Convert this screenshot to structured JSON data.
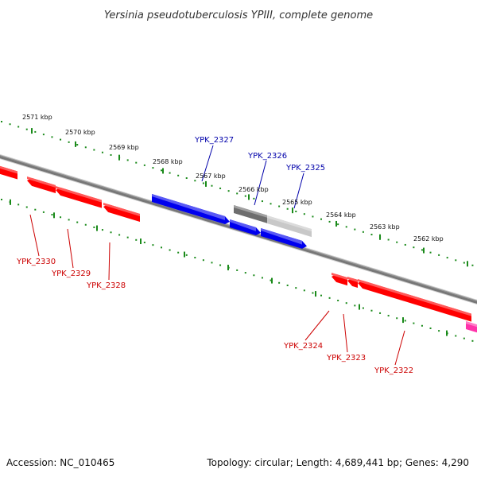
{
  "title": "Yersinia pseudotuberculosis YPIII, complete genome",
  "footer": {
    "accession": "Accession: NC_010465",
    "summary": "Topology: circular; Length: 4,689,441 bp; Genes: 4,290"
  },
  "colors": {
    "forward_gene": "#ff0000",
    "reverse_gene": "#0000ee",
    "pseudo_gene_dark": "#6e6e6e",
    "pseudo_gene_light": "#c8c8c8",
    "other_feature": "#ff33aa",
    "backbone": "#777777",
    "ticks": "#1a8a1a",
    "label_blue": "#0000aa",
    "label_red": "#cc0000"
  },
  "ticks": [
    {
      "label": "2571 kbp"
    },
    {
      "label": "2570 kbp"
    },
    {
      "label": "2569 kbp"
    },
    {
      "label": "2568 kbp"
    },
    {
      "label": "2567 kbp"
    },
    {
      "label": "2566 kbp"
    },
    {
      "label": "2565 kbp"
    },
    {
      "label": "2564 kbp"
    },
    {
      "label": "2563 kbp"
    },
    {
      "label": "2562 kbp"
    }
  ],
  "gene_labels": [
    {
      "text": "YPK_2327"
    },
    {
      "text": "YPK_2326"
    },
    {
      "text": "YPK_2325"
    },
    {
      "text": "YPK_2330"
    },
    {
      "text": "YPK_2329"
    },
    {
      "text": "YPK_2328"
    },
    {
      "text": "YPK_2324"
    },
    {
      "text": "YPK_2323"
    },
    {
      "text": "YPK_2322"
    }
  ]
}
